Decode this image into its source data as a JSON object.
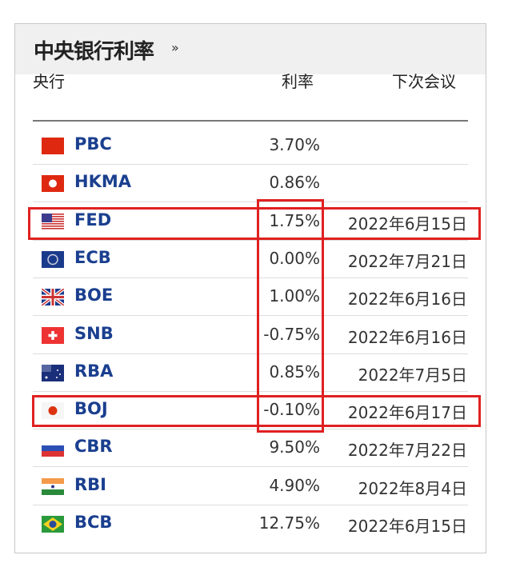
{
  "panel": {
    "title": "中央银行利率",
    "more_icon": "»"
  },
  "columns": {
    "bank": "央行",
    "rate": "利率",
    "next_meeting": "下次会议"
  },
  "rows": [
    {
      "bank": "PBC",
      "flag": "china",
      "rate": "3.70%",
      "date": ""
    },
    {
      "bank": "HKMA",
      "flag": "hong-kong",
      "rate": "0.86%",
      "date": ""
    },
    {
      "bank": "FED",
      "flag": "usa",
      "rate": "1.75%",
      "date": "2022年6月15日",
      "highlighted": true
    },
    {
      "bank": "ECB",
      "flag": "eu",
      "rate": "0.00%",
      "date": "2022年7月21日"
    },
    {
      "bank": "BOE",
      "flag": "uk",
      "rate": "1.00%",
      "date": "2022年6月16日"
    },
    {
      "bank": "SNB",
      "flag": "switzerland",
      "rate": "-0.75%",
      "date": "2022年6月16日"
    },
    {
      "bank": "RBA",
      "flag": "australia",
      "rate": "0.85%",
      "date": "2022年7月5日"
    },
    {
      "bank": "BOJ",
      "flag": "japan",
      "rate": "-0.10%",
      "date": "2022年6月17日",
      "highlighted": true
    },
    {
      "bank": "CBR",
      "flag": "russia",
      "rate": "9.50%",
      "date": "2022年7月22日"
    },
    {
      "bank": "RBI",
      "flag": "india",
      "rate": "4.90%",
      "date": "2022年8月4日"
    },
    {
      "bank": "BCB",
      "flag": "brazil",
      "rate": "12.75%",
      "date": "2022年6月15日"
    }
  ],
  "colors": {
    "link": "#1a3f8f",
    "highlight": "#e02020"
  }
}
